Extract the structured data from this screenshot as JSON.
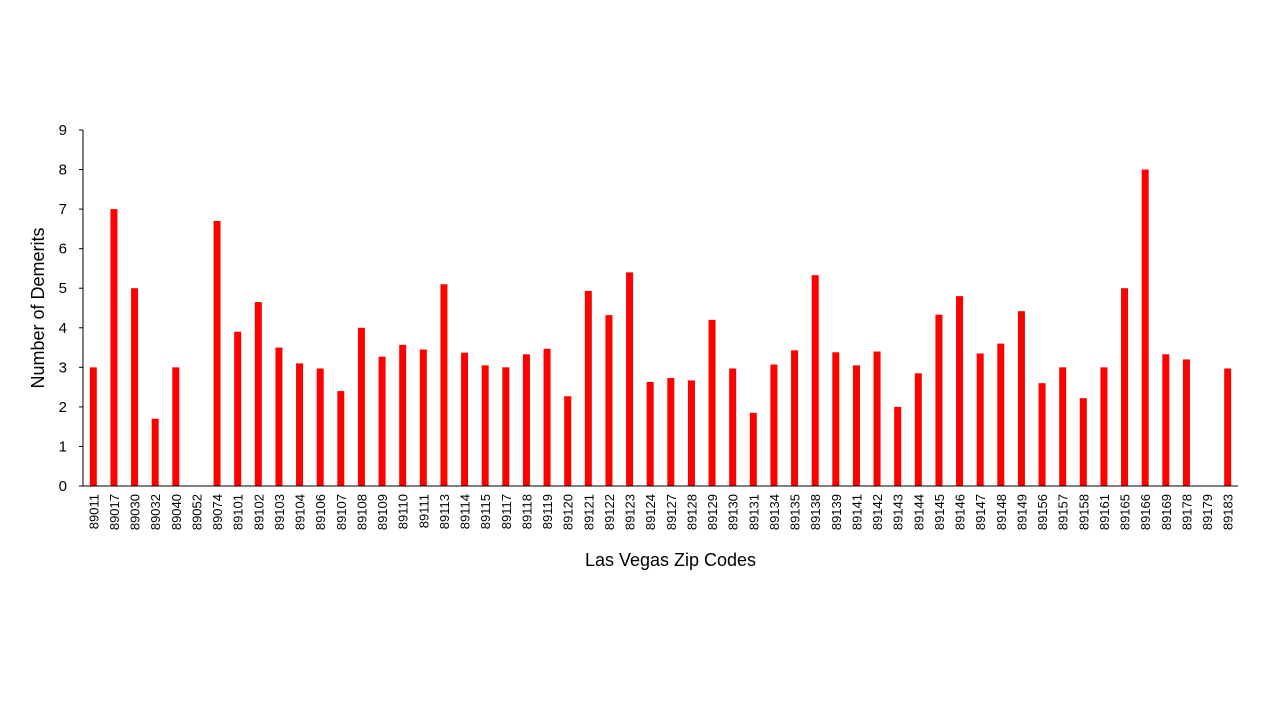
{
  "chart_data": {
    "type": "bar",
    "title": "",
    "xlabel": "Las Vegas Zip Codes",
    "ylabel": "Number of Demerits",
    "ylim": [
      0,
      9
    ],
    "yticks": [
      0,
      1,
      2,
      3,
      4,
      5,
      6,
      7,
      8,
      9
    ],
    "grid": false,
    "legend": "none",
    "bar_color": "#ff0000",
    "categories": [
      "89011",
      "89017",
      "89030",
      "89032",
      "89040",
      "89052",
      "89074",
      "89101",
      "89102",
      "89103",
      "89104",
      "89106",
      "89107",
      "89108",
      "89109",
      "89110",
      "89111",
      "89113",
      "89114",
      "89115",
      "89117",
      "89118",
      "89119",
      "89120",
      "89121",
      "89122",
      "89123",
      "89124",
      "89127",
      "89128",
      "89129",
      "89130",
      "89131",
      "89134",
      "89135",
      "89138",
      "89139",
      "89141",
      "89142",
      "89143",
      "89144",
      "89145",
      "89146",
      "89147",
      "89148",
      "89149",
      "89156",
      "89157",
      "89158",
      "89161",
      "89165",
      "89166",
      "89169",
      "89178",
      "89179",
      "89183"
    ],
    "values": [
      3.0,
      7.0,
      5.0,
      1.7,
      3.0,
      0,
      6.7,
      3.9,
      4.65,
      3.5,
      3.1,
      2.97,
      2.4,
      4.0,
      3.27,
      3.57,
      3.45,
      5.1,
      3.37,
      3.05,
      3.0,
      3.33,
      3.47,
      2.27,
      4.93,
      4.32,
      5.4,
      2.63,
      2.73,
      2.67,
      4.2,
      2.97,
      1.85,
      3.07,
      3.43,
      5.33,
      3.38,
      3.05,
      3.4,
      2.0,
      2.85,
      4.33,
      4.8,
      3.35,
      3.6,
      4.42,
      2.6,
      3.0,
      2.22,
      3.0,
      5.0,
      8.0,
      3.33,
      3.2,
      0,
      2.97
    ]
  }
}
